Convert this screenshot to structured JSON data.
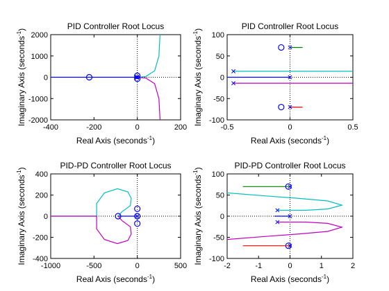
{
  "colors": {
    "blue": "#0000ff",
    "green": "#008000",
    "red": "#ff0000",
    "cyan": "#00bfbf",
    "magenta": "#bf00bf",
    "axis": "#000000",
    "background": "#ffffff"
  },
  "chart_data": [
    {
      "type": "line",
      "title": "PID Controller Root Locus",
      "xlabel": "Real Axis (seconds",
      "ylabel": "Imaginary Axis (seconds",
      "unit_exponent": "-1",
      "xlim": [
        -400,
        200
      ],
      "ylim": [
        -2000,
        2000
      ],
      "xticks": [
        "-400",
        "-200",
        "0",
        "200"
      ],
      "yticks": [
        "2000",
        "1000",
        "0",
        "-1000",
        "-2000"
      ],
      "grid": "origin lines only (dotted)",
      "series": [
        {
          "color": "blue",
          "x": [
            -400,
            -220,
            -60,
            0
          ],
          "y": [
            0,
            0,
            0,
            0
          ]
        },
        {
          "color": "cyan",
          "x": [
            0,
            40,
            80,
            100,
            105
          ],
          "y": [
            0,
            40,
            300,
            1000,
            2000
          ]
        },
        {
          "color": "magenta",
          "x": [
            0,
            40,
            80,
            100,
            105
          ],
          "y": [
            0,
            -40,
            -300,
            -1000,
            -2000
          ]
        }
      ],
      "zeros": [
        {
          "x": -222,
          "y": 0
        },
        {
          "x": 0,
          "y": 70
        },
        {
          "x": 0,
          "y": -70
        }
      ],
      "poles": [
        {
          "x": 0,
          "y": 0
        },
        {
          "x": -2,
          "y": 20
        },
        {
          "x": -2,
          "y": -20
        }
      ]
    },
    {
      "type": "line",
      "title": "PID Controller Root Locus",
      "xlabel": "Real Axis (seconds",
      "ylabel": "Imaginary Axis (seconds",
      "unit_exponent": "-1",
      "xlim": [
        -0.5,
        0.5
      ],
      "ylim": [
        -100,
        100
      ],
      "xticks": [
        "-0.5",
        "0",
        "0.5"
      ],
      "yticks": [
        "100",
        "50",
        "0",
        "-50",
        "-100"
      ],
      "grid": "origin lines only (dotted)",
      "series": [
        {
          "color": "blue",
          "x": [
            -0.5,
            0
          ],
          "y": [
            0,
            0
          ]
        },
        {
          "color": "green",
          "x": [
            0,
            0.1
          ],
          "y": [
            70,
            70
          ]
        },
        {
          "color": "red",
          "x": [
            0,
            0.1
          ],
          "y": [
            -70,
            -70
          ]
        },
        {
          "color": "cyan",
          "x": [
            -0.45,
            0.5
          ],
          "y": [
            14,
            14
          ]
        },
        {
          "color": "magenta",
          "x": [
            -0.45,
            0.5
          ],
          "y": [
            -14,
            -14
          ]
        }
      ],
      "zeros": [
        {
          "x": -0.07,
          "y": 70
        },
        {
          "x": -0.07,
          "y": -70
        }
      ],
      "poles": [
        {
          "x": 0,
          "y": 70
        },
        {
          "x": 0,
          "y": -70
        },
        {
          "x": 0,
          "y": 0
        },
        {
          "x": -0.45,
          "y": 14
        },
        {
          "x": -0.45,
          "y": -14
        }
      ]
    },
    {
      "type": "line",
      "title": "PID-PD Controller Root Locus",
      "xlabel": "Real Axis (seconds",
      "ylabel": "Imaginary Axis (seconds",
      "unit_exponent": "-1",
      "xlim": [
        -1000,
        500
      ],
      "ylim": [
        -400,
        400
      ],
      "xticks": [
        "-1000",
        "-500",
        "0",
        "500"
      ],
      "yticks": [
        "400",
        "200",
        "0",
        "-200",
        "-400"
      ],
      "grid": "origin lines only (dotted)",
      "series": [
        {
          "color": "blue",
          "x": [
            -220,
            0
          ],
          "y": [
            0,
            0
          ]
        },
        {
          "color": "cyan",
          "x": [
            -220,
            -180,
            -80,
            -70,
            -110,
            -230,
            -380,
            -470,
            -470,
            -1000
          ],
          "y": [
            0,
            40,
            100,
            170,
            230,
            260,
            220,
            120,
            0,
            0
          ]
        },
        {
          "color": "magenta",
          "x": [
            -220,
            -180,
            -80,
            -70,
            -110,
            -230,
            -380,
            -470,
            -470,
            -1000
          ],
          "y": [
            0,
            -40,
            -100,
            -170,
            -230,
            -260,
            -220,
            -120,
            0,
            0
          ]
        }
      ],
      "zeros": [
        {
          "x": -222,
          "y": 0
        },
        {
          "x": 0,
          "y": 70
        },
        {
          "x": 0,
          "y": 0
        },
        {
          "x": 0,
          "y": -70
        }
      ],
      "poles": [
        {
          "x": 0,
          "y": 0
        }
      ]
    },
    {
      "type": "line",
      "title": "PID-PD Controller Root Locus",
      "xlabel": "Real Axis (seconds",
      "ylabel": "Imaginary Axis (seconds",
      "unit_exponent": "-1",
      "xlim": [
        -2,
        2
      ],
      "ylim": [
        -100,
        100
      ],
      "xticks": [
        "-2",
        "-1",
        "0",
        "1",
        "2"
      ],
      "yticks": [
        "100",
        "50",
        "0",
        "-50",
        "-100"
      ],
      "grid": "origin lines only (dotted)",
      "series": [
        {
          "color": "blue",
          "x": [
            -0.5,
            0
          ],
          "y": [
            0,
            0
          ]
        },
        {
          "color": "green",
          "x": [
            -1.5,
            0
          ],
          "y": [
            70,
            70
          ]
        },
        {
          "color": "red",
          "x": [
            -1.5,
            0
          ],
          "y": [
            -70,
            -70
          ]
        },
        {
          "color": "cyan",
          "x": [
            -0.4,
            0.5,
            1.2,
            1.65,
            1.2,
            0.3,
            -0.8,
            -2
          ],
          "y": [
            14,
            14,
            17,
            26,
            36,
            42,
            48,
            55
          ]
        },
        {
          "color": "magenta",
          "x": [
            -0.4,
            0.5,
            1.2,
            1.65,
            1.2,
            0.3,
            -0.8,
            -2
          ],
          "y": [
            -14,
            -14,
            -17,
            -26,
            -36,
            -42,
            -48,
            -55
          ]
        }
      ],
      "zeros": [
        {
          "x": -0.05,
          "y": 70
        },
        {
          "x": -0.05,
          "y": -70
        }
      ],
      "poles": [
        {
          "x": 0,
          "y": 70
        },
        {
          "x": 0,
          "y": -70
        },
        {
          "x": 0,
          "y": 0
        },
        {
          "x": -0.4,
          "y": 14
        },
        {
          "x": -0.4,
          "y": -14
        }
      ]
    }
  ]
}
